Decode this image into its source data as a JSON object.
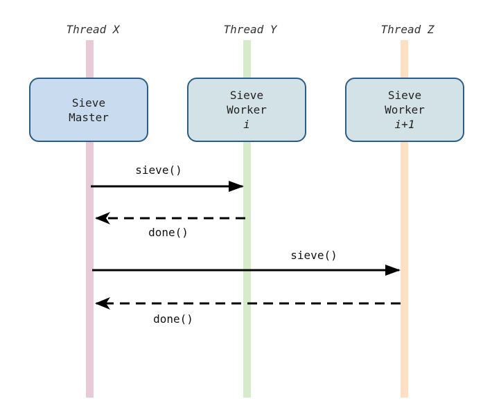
{
  "threads": [
    {
      "title": "Thread X",
      "lifeline_color": "#e8c9d6"
    },
    {
      "title": "Thread Y",
      "lifeline_color": "#d6ebc9"
    },
    {
      "title": "Thread Z",
      "lifeline_color": "#fbe0c3"
    }
  ],
  "participants": [
    {
      "line1": "Sieve",
      "line2": "Master",
      "line3": "",
      "fill": "#c9dcef"
    },
    {
      "line1": "Sieve",
      "line2": "Worker",
      "line3": "i",
      "fill": "#d3e2e6"
    },
    {
      "line1": "Sieve",
      "line2": "Worker",
      "line3": "i+1",
      "fill": "#d3e2e6"
    }
  ],
  "messages": [
    {
      "label": "sieve()",
      "from": "Thread X",
      "to": "Thread Y",
      "style": "solid"
    },
    {
      "label": "done()",
      "from": "Thread Y",
      "to": "Thread X",
      "style": "dashed"
    },
    {
      "label": "sieve()",
      "from": "Thread X",
      "to": "Thread Z",
      "style": "solid"
    },
    {
      "label": "done()",
      "from": "Thread Z",
      "to": "Thread X",
      "style": "dashed"
    }
  ],
  "colors": {
    "box_border": "#2b5c86",
    "arrow": "#000000"
  }
}
